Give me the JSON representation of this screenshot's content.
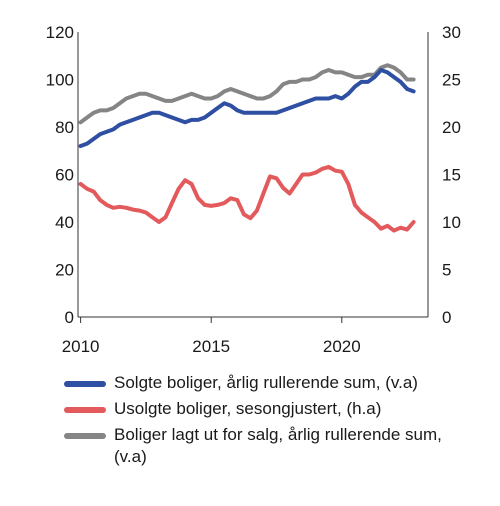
{
  "chart_data": {
    "type": "line",
    "x_ticks": [
      2010,
      2015,
      2020
    ],
    "xlim": [
      2009.9,
      2023.3
    ],
    "left_axis": {
      "ylim": [
        0,
        120
      ],
      "ticks": [
        "0",
        "20",
        "40",
        "60",
        "80",
        "100",
        "120"
      ]
    },
    "right_axis": {
      "ylim": [
        0,
        30
      ],
      "ticks": [
        "0",
        "5",
        "10",
        "15",
        "20",
        "25",
        "30"
      ]
    },
    "grid": false,
    "legend_position": "bottom",
    "series": [
      {
        "name": "Solgte boliger, årlig rullerende sum, (v.a)",
        "axis": "left",
        "color": "#2e4fa2",
        "x": [
          2010.0,
          2010.25,
          2010.5,
          2010.75,
          2011.0,
          2011.25,
          2011.5,
          2011.75,
          2012.0,
          2012.25,
          2012.5,
          2012.75,
          2013.0,
          2013.25,
          2013.5,
          2013.75,
          2014.0,
          2014.25,
          2014.5,
          2014.75,
          2015.0,
          2015.25,
          2015.5,
          2015.75,
          2016.0,
          2016.25,
          2016.5,
          2016.75,
          2017.0,
          2017.25,
          2017.5,
          2017.75,
          2018.0,
          2018.25,
          2018.5,
          2018.75,
          2019.0,
          2019.25,
          2019.5,
          2019.75,
          2020.0,
          2020.25,
          2020.5,
          2020.75,
          2021.0,
          2021.25,
          2021.5,
          2021.75,
          2022.0,
          2022.25,
          2022.5,
          2022.75
        ],
        "y": [
          72,
          73,
          75,
          77,
          78,
          79,
          81,
          82,
          83,
          84,
          85,
          86,
          86,
          85,
          84,
          83,
          82,
          83,
          83,
          84,
          86,
          88,
          90,
          89,
          87,
          86,
          86,
          86,
          86,
          86,
          86,
          87,
          88,
          89,
          90,
          91,
          92,
          92,
          92,
          93,
          92,
          94,
          97,
          99,
          99,
          101,
          104,
          103,
          101,
          99,
          96,
          95
        ]
      },
      {
        "name": "Usolgte boliger, sesongjustert, (h.a)",
        "axis": "right",
        "color": "#e35a5c",
        "x": [
          2010.0,
          2010.25,
          2010.5,
          2010.75,
          2011.0,
          2011.25,
          2011.5,
          2011.75,
          2012.0,
          2012.25,
          2012.5,
          2012.75,
          2013.0,
          2013.25,
          2013.5,
          2013.75,
          2014.0,
          2014.25,
          2014.5,
          2014.75,
          2015.0,
          2015.25,
          2015.5,
          2015.75,
          2016.0,
          2016.25,
          2016.5,
          2016.75,
          2017.0,
          2017.25,
          2017.5,
          2017.75,
          2018.0,
          2018.25,
          2018.5,
          2018.75,
          2019.0,
          2019.25,
          2019.5,
          2019.75,
          2020.0,
          2020.25,
          2020.5,
          2020.75,
          2021.0,
          2021.25,
          2021.5,
          2021.75,
          2022.0,
          2022.25,
          2022.5,
          2022.75
        ],
        "y": [
          14,
          13.5,
          13.2,
          12.3,
          11.8,
          11.5,
          11.6,
          11.5,
          11.3,
          11.2,
          11.0,
          10.5,
          10.0,
          10.5,
          12.0,
          13.5,
          14.4,
          14.0,
          12.5,
          11.8,
          11.7,
          11.8,
          12.0,
          12.5,
          12.3,
          10.8,
          10.4,
          11.2,
          13.0,
          14.8,
          14.6,
          13.6,
          13.0,
          14.0,
          15.0,
          15.0,
          15.2,
          15.6,
          15.8,
          15.4,
          15.3,
          14.0,
          11.8,
          11.0,
          10.5,
          10.0,
          9.3,
          9.6,
          9.1,
          9.4,
          9.2,
          10.0
        ]
      },
      {
        "name": "Boliger lagt ut for salg, årlig rullerende sum, (v.a)",
        "axis": "left",
        "color": "#858585",
        "x": [
          2010.0,
          2010.25,
          2010.5,
          2010.75,
          2011.0,
          2011.25,
          2011.5,
          2011.75,
          2012.0,
          2012.25,
          2012.5,
          2012.75,
          2013.0,
          2013.25,
          2013.5,
          2013.75,
          2014.0,
          2014.25,
          2014.5,
          2014.75,
          2015.0,
          2015.25,
          2015.5,
          2015.75,
          2016.0,
          2016.25,
          2016.5,
          2016.75,
          2017.0,
          2017.25,
          2017.5,
          2017.75,
          2018.0,
          2018.25,
          2018.5,
          2018.75,
          2019.0,
          2019.25,
          2019.5,
          2019.75,
          2020.0,
          2020.25,
          2020.5,
          2020.75,
          2021.0,
          2021.25,
          2021.5,
          2021.75,
          2022.0,
          2022.25,
          2022.5,
          2022.75
        ],
        "y": [
          82,
          84,
          86,
          87,
          87,
          88,
          90,
          92,
          93,
          94,
          94,
          93,
          92,
          91,
          91,
          92,
          93,
          94,
          93,
          92,
          92,
          93,
          95,
          96,
          95,
          94,
          93,
          92,
          92,
          93,
          95,
          98,
          99,
          99,
          100,
          100,
          101,
          103,
          104,
          103,
          103,
          102,
          101,
          101,
          102,
          102,
          105,
          106,
          105,
          103,
          100,
          100
        ]
      }
    ]
  }
}
